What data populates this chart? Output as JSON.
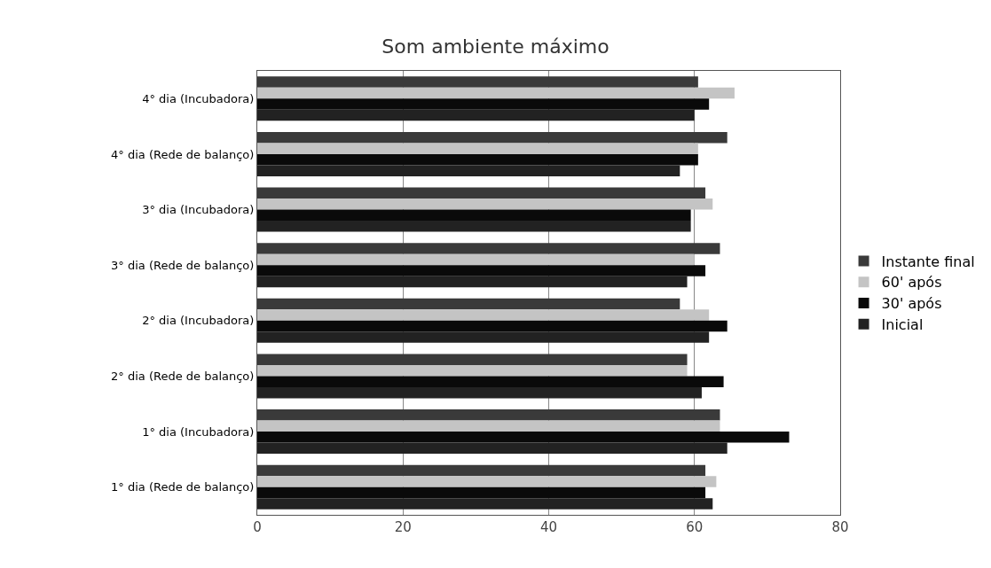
{
  "chart_data": {
    "type": "bar",
    "orientation": "horizontal",
    "title": "Som ambiente máximo",
    "categories": [
      "4° dia (Incubadora)",
      "4° dia (Rede de balanço)",
      "3° dia (Incubadora)",
      "3° dia (Rede de balanço)",
      "2° dia (Incubadora)",
      "2° dia (Rede de balanço)",
      "1° dia (Incubadora)",
      "1° dia (Rede de balanço)"
    ],
    "series": [
      {
        "name": "Instante final",
        "color": "#3a3a3a",
        "values": [
          60.5,
          64.5,
          61.5,
          63.5,
          58,
          59,
          63.5,
          61.5
        ]
      },
      {
        "name": "60' após",
        "color": "#c4c4c4",
        "values": [
          65.5,
          60.5,
          62.5,
          60,
          62,
          59,
          63.5,
          63
        ]
      },
      {
        "name": "30' após",
        "color": "#0a0a0a",
        "values": [
          62,
          60.5,
          59.5,
          61.5,
          64.5,
          64,
          73,
          61.5
        ]
      },
      {
        "name": "Inicial",
        "color": "#222222",
        "values": [
          60,
          58,
          59.5,
          59,
          62,
          61,
          64.5,
          62.5
        ]
      }
    ],
    "xlim": [
      0,
      80
    ],
    "xticks": [
      0,
      20,
      40,
      60,
      80
    ],
    "grid": "x",
    "legend": "right"
  }
}
